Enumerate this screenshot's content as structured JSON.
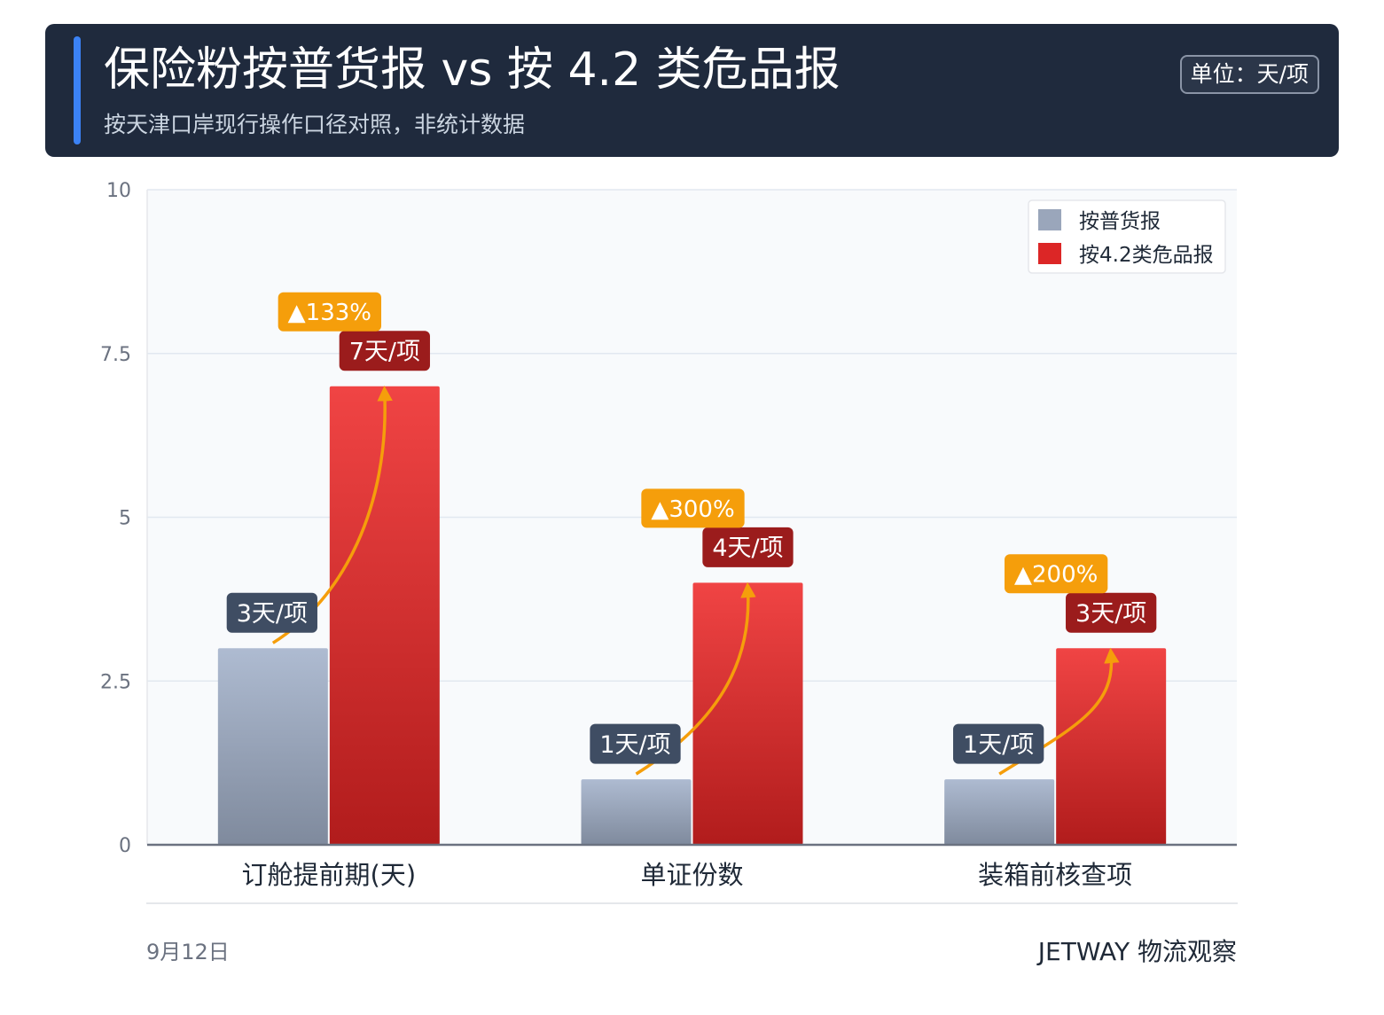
{
  "header": {
    "title": "保险粉按普货报 vs 按 4.2 类危品报",
    "subtitle": "按天津口岸现行操作口径对照，非统计数据",
    "unit_badge": "单位：天/项"
  },
  "footer": {
    "date": "9月12日",
    "brand": "JETWAY 物流观察"
  },
  "colors": {
    "header_bg": "#1f2a3d",
    "accent": "#3b82f6",
    "series_general": "#9aa6bb",
    "series_dangerous": "#dc2626",
    "label_general_bg": "#3f4d63",
    "label_dangerous_bg": "#9b1c1c",
    "increase_badge": "#f59e0b"
  },
  "chart_data": {
    "type": "bar",
    "categories": [
      "订舱提前期(天)",
      "单证份数",
      "装箱前核查项"
    ],
    "series": [
      {
        "name": "按普货报",
        "values": [
          3,
          1,
          1
        ],
        "labels": [
          "3天/项",
          "1天/项",
          "1天/项"
        ]
      },
      {
        "name": "按4.2类危品报",
        "values": [
          7,
          4,
          3
        ],
        "labels": [
          "7天/项",
          "4天/项",
          "3天/项"
        ]
      }
    ],
    "increase_labels": [
      "▲133%",
      "▲300%",
      "▲200%"
    ],
    "yticks": [
      "0",
      "2.5",
      "5",
      "7.5",
      "10"
    ],
    "ylim": [
      0,
      10
    ],
    "grid": true,
    "legend_position": "top-right"
  }
}
